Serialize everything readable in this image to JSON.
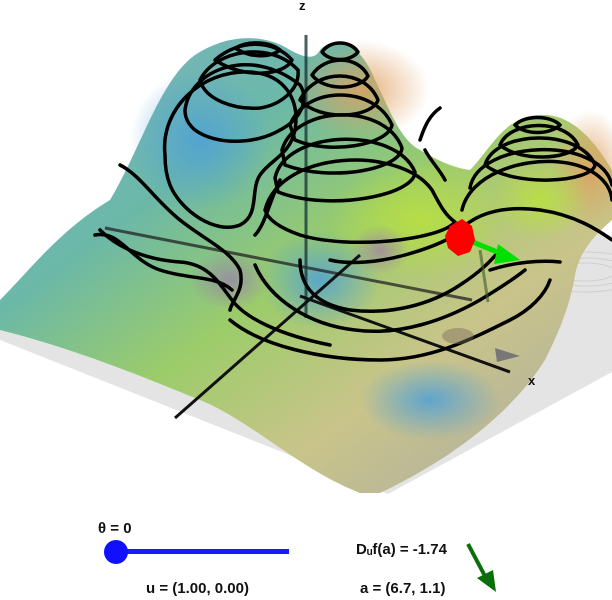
{
  "axes": {
    "x_label": "x",
    "z_label": "z"
  },
  "slider": {
    "label": "θ = 0",
    "value": 0,
    "min": 0,
    "max": 6.283
  },
  "readouts": {
    "direction": "u = (1.00, 0.00)",
    "directional_derivative": "Dᵤf(a) = -1.74",
    "point": "a = (6.7, 1.1)"
  },
  "colors": {
    "point": "#ff0000",
    "gradient_arrow": "#00e000",
    "derivative_arrow": "#0a6e0a",
    "slider": "#1010ff",
    "contours": "#000000"
  }
}
